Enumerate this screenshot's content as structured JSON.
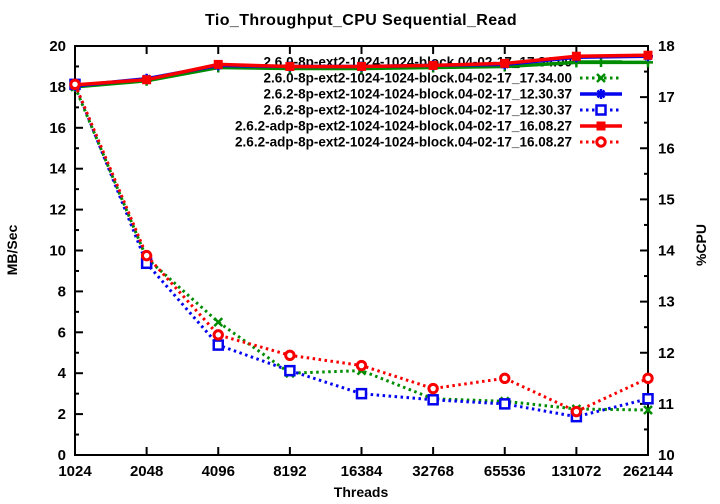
{
  "chart_data": {
    "type": "line",
    "title": "Tio_Throughput_CPU Sequential_Read",
    "xlabel": "Threads",
    "ylabel": "MB/Sec",
    "y2label": "%CPU",
    "x_scale": "log2",
    "x_tick_labels": [
      "1024",
      "2048",
      "4096",
      "8192",
      "16384",
      "32768",
      "65536",
      "131072",
      "262144"
    ],
    "ylim": [
      0,
      20
    ],
    "y_major_step": 2,
    "y_minor_step": 1,
    "y2lim": [
      10,
      18
    ],
    "y2_major_step": 1,
    "y2_minor_step": 0.5,
    "grid": false,
    "legend_position": "top-right-inside",
    "series": [
      {
        "name": "2.6.0-8p-ext2-1024-1024-block.04-02-17_17.34.00",
        "axis": "y1",
        "units": "MB/Sec",
        "color": "#008c00",
        "style": "solid",
        "marker": "plus",
        "values": [
          18.0,
          18.3,
          18.95,
          18.9,
          18.9,
          18.95,
          19.0,
          19.2,
          19.2
        ]
      },
      {
        "name": "2.6.0-8p-ext2-1024-1024-block.04-02-17_17.34.00",
        "axis": "y2",
        "units": "%CPU",
        "color": "#008c00",
        "style": "dotted",
        "marker": "cross",
        "values": [
          17.2,
          13.85,
          12.6,
          11.6,
          11.65,
          11.1,
          11.05,
          10.9,
          10.88
        ]
      },
      {
        "name": "2.6.2-8p-ext2-1024-1024-block.04-02-17_12.30.37",
        "axis": "y1",
        "units": "MB/Sec",
        "color": "#0404ee",
        "style": "solid",
        "marker": "asterisk",
        "values": [
          18.05,
          18.4,
          19.05,
          19.0,
          19.0,
          19.05,
          19.1,
          19.45,
          19.5
        ]
      },
      {
        "name": "2.6.2-8p-ext2-1024-1024-block.04-02-17_12.30.37",
        "axis": "y2",
        "units": "%CPU",
        "color": "#0404ee",
        "style": "dotted",
        "marker": "square-open",
        "values": [
          17.25,
          13.75,
          12.15,
          11.65,
          11.2,
          11.08,
          11.0,
          10.75,
          11.1
        ]
      },
      {
        "name": "2.6.2-adp-8p-ext2-1024-1024-block.04-02-17_16.08.27",
        "axis": "y1",
        "units": "MB/Sec",
        "color": "#f80000",
        "style": "solid",
        "marker": "square-filled",
        "values": [
          18.1,
          18.35,
          19.1,
          19.0,
          19.0,
          19.05,
          19.15,
          19.5,
          19.55
        ]
      },
      {
        "name": "2.6.2-adp-8p-ext2-1024-1024-block.04-02-17_16.08.27",
        "axis": "y2",
        "units": "%CPU",
        "color": "#f80000",
        "style": "dotted",
        "marker": "circle-open",
        "values": [
          17.25,
          13.9,
          12.35,
          11.95,
          11.75,
          11.3,
          11.5,
          10.85,
          11.5
        ]
      }
    ]
  }
}
